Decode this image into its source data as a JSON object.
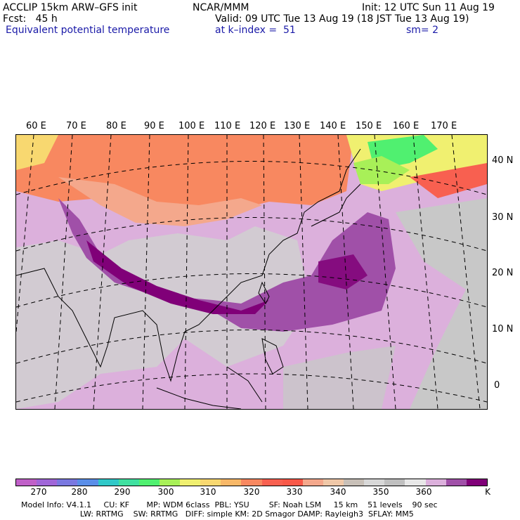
{
  "header": {
    "line1_left": "ACCLIP 15km ARW–GFS init",
    "line1_center": "NCAR/MMM",
    "line1_right": "Init: 12 UTC Sun 11 Aug 19",
    "line2_left": "Fcst:   45 h",
    "line2_right": "Valid: 09 UTC Tue 13 Aug 19 (18 JST Tue 13 Aug 19)",
    "line3_left": "Equivalent potential temperature",
    "line3_center": "at k–index =  51",
    "line3_right": "sm= 2"
  },
  "map": {
    "lon_labels": [
      "60 E",
      "70 E",
      "80 E",
      "90 E",
      "100 E",
      "110 E",
      "120 E",
      "130 E",
      "140 E",
      "150 E",
      "160 E",
      "170 E"
    ],
    "lat_labels": [
      "40 N",
      "30 N",
      "20 N",
      "10 N",
      "0"
    ]
  },
  "colorbar": {
    "colors": [
      "#c060c8",
      "#a066d8",
      "#7a78e0",
      "#5a8ee8",
      "#30c8c8",
      "#40e0a0",
      "#50f070",
      "#a8f058",
      "#f0f070",
      "#f8d870",
      "#f8b868",
      "#f88860",
      "#f86050",
      "#f85848",
      "#f4a88c",
      "#f0c8a8",
      "#c8c0b8",
      "#d8d8d8",
      "#c0c0c0",
      "#e8e8e8",
      "#dcb0dc",
      "#a050a8",
      "#800078"
    ],
    "tick_labels": [
      "270",
      "280",
      "290",
      "300",
      "310",
      "320",
      "330",
      "340",
      "350",
      "360",
      "K"
    ]
  },
  "footer": {
    "line1": "Model Info: V4.1.1     CU: KF       MP: WDM 6class  PBL: YSU        SF: Noah LSM     15 km    51 levels    90 sec",
    "line2": "                        LW: RRTMG    SW: RRTMG   DIFF: simple KM: 2D Smagor DAMP: Rayleigh3  SFLAY: MM5"
  }
}
